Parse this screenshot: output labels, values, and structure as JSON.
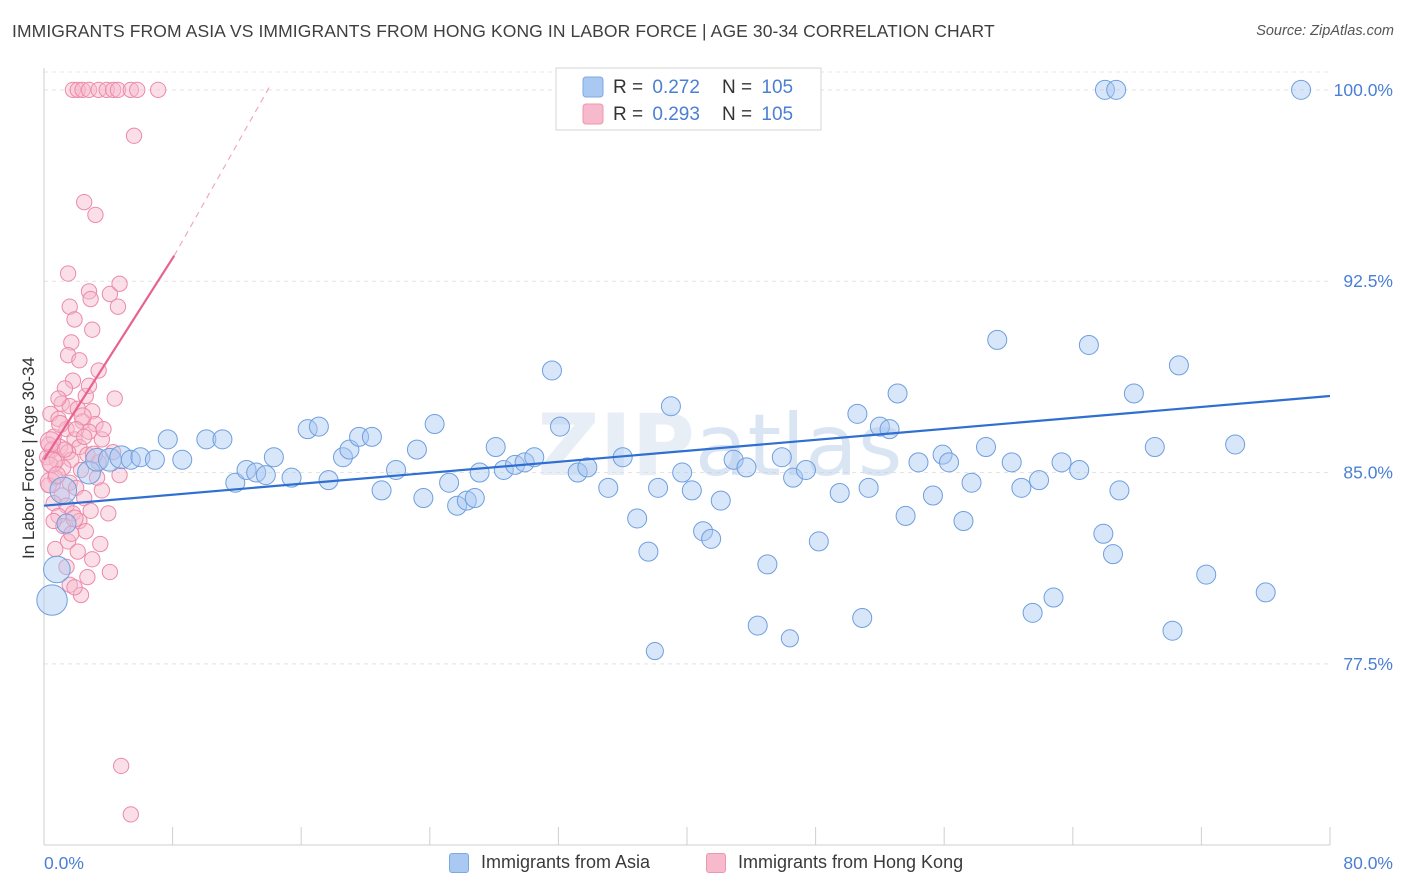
{
  "header": {
    "title": "IMMIGRANTS FROM ASIA VS IMMIGRANTS FROM HONG KONG IN LABOR FORCE | AGE 30-34 CORRELATION CHART",
    "source": "Source: ZipAtlas.com"
  },
  "legend": {
    "asia": {
      "r_label": "R = ",
      "r_value": "0.272",
      "n_label": "N = ",
      "n_value": "105"
    },
    "hk": {
      "r_label": "R = ",
      "r_value": "0.293",
      "n_label": "N = ",
      "n_value": "105"
    }
  },
  "bottom_legend": {
    "asia_label": "Immigrants from Asia",
    "hk_label": "Immigrants from Hong Kong"
  },
  "watermark": "ZIPatlas",
  "colors": {
    "asia_fill": "#a9c8f2",
    "asia_stroke": "#6f9fde",
    "asia_line": "#2f6fd0",
    "hk_fill": "#f7b9cc",
    "hk_stroke": "#ec89a8",
    "hk_line": "#e8628f",
    "axis_value_text": "#4a7fd4",
    "grid": "#e4e4e4"
  },
  "chart_data": {
    "type": "scatter",
    "title": "IMMIGRANTS FROM ASIA VS IMMIGRANTS FROM HONG KONG IN LABOR FORCE | AGE 30-34 CORRELATION CHART",
    "xlabel": "",
    "ylabel": "In Labor Force | Age 30-34",
    "xlim": [
      0,
      80
    ],
    "ylim": [
      70.4,
      100.7
    ],
    "x_tick_labels": [
      "0.0%",
      "80.0%"
    ],
    "y_ticks": [
      77.5,
      85.0,
      92.5,
      100.0
    ],
    "y_tick_labels": [
      "77.5%",
      "85.0%",
      "92.5%",
      "100.0%"
    ],
    "grid": true,
    "legend_position": "top-center",
    "series": [
      {
        "name": "Immigrants from Asia",
        "r": 0.272,
        "n": 105,
        "trend": {
          "x": [
            0,
            80
          ],
          "y": [
            83.7,
            88.0
          ]
        },
        "points": [
          [
            0.5,
            80.0,
            16
          ],
          [
            0.8,
            81.2,
            14
          ],
          [
            1.2,
            84.3,
            14
          ],
          [
            1.4,
            83.0,
            10
          ],
          [
            2.8,
            85.0,
            12
          ],
          [
            3.3,
            85.5,
            12
          ],
          [
            4.1,
            85.5,
            12
          ],
          [
            4.8,
            85.6,
            12
          ],
          [
            5.4,
            85.5,
            10
          ],
          [
            6.0,
            85.6,
            10
          ],
          [
            6.9,
            85.5,
            10
          ],
          [
            7.7,
            86.3,
            10
          ],
          [
            8.6,
            85.5,
            10
          ],
          [
            10.1,
            86.3,
            10
          ],
          [
            11.1,
            86.3,
            10
          ],
          [
            11.9,
            84.6,
            10
          ],
          [
            12.6,
            85.1,
            10
          ],
          [
            13.2,
            85.0,
            10
          ],
          [
            13.8,
            84.9,
            10
          ],
          [
            14.3,
            85.6,
            10
          ],
          [
            15.4,
            84.8,
            10
          ],
          [
            16.4,
            86.7,
            10
          ],
          [
            17.1,
            86.8,
            10
          ],
          [
            17.7,
            84.7,
            10
          ],
          [
            18.6,
            85.6,
            10
          ],
          [
            19.0,
            85.9,
            10
          ],
          [
            19.6,
            86.4,
            10
          ],
          [
            20.4,
            86.4,
            10
          ],
          [
            21.0,
            84.3,
            10
          ],
          [
            21.9,
            85.1,
            10
          ],
          [
            23.2,
            85.9,
            10
          ],
          [
            23.6,
            84.0,
            10
          ],
          [
            24.3,
            86.9,
            10
          ],
          [
            25.2,
            84.6,
            10
          ],
          [
            25.7,
            83.7,
            10
          ],
          [
            26.3,
            83.9,
            10
          ],
          [
            26.8,
            84.0,
            10
          ],
          [
            27.1,
            85.0,
            10
          ],
          [
            28.1,
            86.0,
            10
          ],
          [
            28.6,
            85.1,
            10
          ],
          [
            29.3,
            85.3,
            10
          ],
          [
            29.9,
            85.4,
            10
          ],
          [
            30.5,
            85.6,
            10
          ],
          [
            31.6,
            89.0,
            10
          ],
          [
            32.1,
            86.8,
            10
          ],
          [
            33.2,
            85.0,
            10
          ],
          [
            33.8,
            85.2,
            10
          ],
          [
            35.1,
            84.4,
            10
          ],
          [
            36.0,
            85.6,
            10
          ],
          [
            36.9,
            83.2,
            10
          ],
          [
            37.6,
            81.9,
            10
          ],
          [
            38.2,
            84.4,
            10
          ],
          [
            39.0,
            87.6,
            10
          ],
          [
            39.7,
            85.0,
            10
          ],
          [
            40.3,
            84.3,
            10
          ],
          [
            41.0,
            82.7,
            10
          ],
          [
            41.5,
            82.4,
            10
          ],
          [
            42.1,
            83.9,
            10
          ],
          [
            42.9,
            85.5,
            10
          ],
          [
            43.7,
            85.2,
            10
          ],
          [
            44.4,
            79.0,
            10
          ],
          [
            45.0,
            81.4,
            10
          ],
          [
            45.9,
            85.6,
            10
          ],
          [
            46.6,
            84.8,
            10
          ],
          [
            47.4,
            85.1,
            10
          ],
          [
            48.2,
            82.3,
            10
          ],
          [
            49.5,
            84.2,
            10
          ],
          [
            50.6,
            87.3,
            10
          ],
          [
            50.9,
            79.3,
            10
          ],
          [
            51.3,
            84.4,
            10
          ],
          [
            52.0,
            86.8,
            10
          ],
          [
            52.6,
            86.7,
            10
          ],
          [
            53.1,
            88.1,
            10
          ],
          [
            53.6,
            83.3,
            10
          ],
          [
            54.4,
            85.4,
            10
          ],
          [
            55.3,
            84.1,
            10
          ],
          [
            55.9,
            85.7,
            10
          ],
          [
            56.3,
            85.4,
            10
          ],
          [
            57.2,
            83.1,
            10
          ],
          [
            57.7,
            84.6,
            10
          ],
          [
            58.6,
            86.0,
            10
          ],
          [
            59.3,
            90.2,
            10
          ],
          [
            60.2,
            85.4,
            10
          ],
          [
            60.8,
            84.4,
            10
          ],
          [
            61.5,
            79.5,
            10
          ],
          [
            61.9,
            84.7,
            10
          ],
          [
            62.8,
            80.1,
            10
          ],
          [
            63.3,
            85.4,
            10
          ],
          [
            64.4,
            85.1,
            10
          ],
          [
            65.0,
            90.0,
            10
          ],
          [
            65.9,
            82.6,
            10
          ],
          [
            66.5,
            81.8,
            10
          ],
          [
            66.9,
            84.3,
            10
          ],
          [
            67.8,
            88.1,
            10
          ],
          [
            69.1,
            86.0,
            10
          ],
          [
            70.2,
            78.8,
            10
          ],
          [
            70.6,
            89.2,
            10
          ],
          [
            72.3,
            81.0,
            10
          ],
          [
            74.1,
            86.1,
            10
          ],
          [
            76.0,
            80.3,
            10
          ],
          [
            66.0,
            100.0,
            10
          ],
          [
            66.7,
            100.0,
            10
          ],
          [
            78.2,
            100.0,
            10
          ],
          [
            38.0,
            78.0,
            9
          ],
          [
            46.4,
            78.5,
            9
          ]
        ]
      },
      {
        "name": "Immigrants from Hong Kong",
        "r": 0.293,
        "n": 105,
        "trend": {
          "x": [
            0,
            8.1
          ],
          "y": [
            85.5,
            93.5
          ]
        },
        "trend_extension": {
          "x": [
            8.1,
            14.1
          ],
          "y": [
            93.5,
            100.2
          ]
        },
        "points": [
          [
            1.8,
            100.0,
            9
          ],
          [
            2.1,
            100.0,
            9
          ],
          [
            2.4,
            100.0,
            9
          ],
          [
            2.8,
            100.0,
            9
          ],
          [
            3.4,
            100.0,
            9
          ],
          [
            3.9,
            100.0,
            9
          ],
          [
            4.3,
            100.0,
            9
          ],
          [
            4.6,
            100.0,
            9
          ],
          [
            5.4,
            100.0,
            9
          ],
          [
            5.8,
            100.0,
            9
          ],
          [
            7.1,
            100.0,
            9
          ],
          [
            5.6,
            98.2,
            9
          ],
          [
            2.5,
            95.6,
            9
          ],
          [
            3.2,
            95.1,
            9
          ],
          [
            1.5,
            92.8,
            9
          ],
          [
            2.8,
            92.1,
            9
          ],
          [
            4.1,
            92.0,
            9
          ],
          [
            4.7,
            92.4,
            9
          ],
          [
            2.9,
            91.8,
            9
          ],
          [
            1.6,
            91.5,
            9
          ],
          [
            1.9,
            91.0,
            9
          ],
          [
            4.6,
            91.5,
            9
          ],
          [
            3.0,
            90.6,
            9
          ],
          [
            1.7,
            90.1,
            9
          ],
          [
            1.5,
            89.6,
            9
          ],
          [
            2.2,
            89.4,
            9
          ],
          [
            3.4,
            89.0,
            9
          ],
          [
            1.8,
            88.6,
            9
          ],
          [
            1.3,
            88.3,
            9
          ],
          [
            2.6,
            88.0,
            9
          ],
          [
            4.4,
            87.9,
            9
          ],
          [
            1.1,
            87.7,
            9
          ],
          [
            1.6,
            87.6,
            9
          ],
          [
            2.1,
            87.5,
            9
          ],
          [
            3.0,
            87.4,
            9
          ],
          [
            0.4,
            87.3,
            9
          ],
          [
            0.9,
            87.1,
            9
          ],
          [
            2.4,
            87.0,
            9
          ],
          [
            3.2,
            86.9,
            9
          ],
          [
            1.4,
            86.7,
            9
          ],
          [
            2.8,
            86.6,
            9
          ],
          [
            0.6,
            86.4,
            9
          ],
          [
            1.9,
            86.3,
            9
          ],
          [
            3.6,
            86.3,
            9
          ],
          [
            0.3,
            86.1,
            9
          ],
          [
            1.0,
            86.0,
            9
          ],
          [
            2.2,
            86.0,
            9
          ],
          [
            0.5,
            85.9,
            9
          ],
          [
            1.5,
            85.8,
            9
          ],
          [
            2.7,
            85.7,
            9
          ],
          [
            0.2,
            85.6,
            9
          ],
          [
            0.8,
            85.5,
            9
          ],
          [
            1.7,
            85.5,
            9
          ],
          [
            3.4,
            85.4,
            9
          ],
          [
            0.4,
            85.3,
            9
          ],
          [
            1.2,
            85.2,
            9
          ],
          [
            2.3,
            85.1,
            9
          ],
          [
            4.7,
            84.9,
            9
          ],
          [
            0.7,
            84.8,
            9
          ],
          [
            1.6,
            84.6,
            9
          ],
          [
            0.3,
            84.5,
            9
          ],
          [
            2.0,
            84.4,
            9
          ],
          [
            3.6,
            84.3,
            9
          ],
          [
            1.1,
            84.1,
            9
          ],
          [
            2.5,
            84.0,
            9
          ],
          [
            0.6,
            83.8,
            9
          ],
          [
            1.4,
            83.7,
            9
          ],
          [
            2.9,
            83.5,
            9
          ],
          [
            1.8,
            83.4,
            9
          ],
          [
            4.0,
            83.4,
            9
          ],
          [
            0.9,
            83.3,
            9
          ],
          [
            2.2,
            83.1,
            9
          ],
          [
            1.2,
            82.9,
            9
          ],
          [
            2.6,
            82.7,
            9
          ],
          [
            1.5,
            82.3,
            9
          ],
          [
            3.5,
            82.2,
            9
          ],
          [
            0.7,
            82.0,
            9
          ],
          [
            2.1,
            81.9,
            9
          ],
          [
            3.0,
            81.6,
            9
          ],
          [
            1.4,
            81.3,
            9
          ],
          [
            4.1,
            81.1,
            9
          ],
          [
            2.7,
            80.9,
            9
          ],
          [
            1.6,
            80.6,
            9
          ],
          [
            2.3,
            80.2,
            9
          ],
          [
            1.9,
            80.5,
            9
          ],
          [
            4.8,
            73.5,
            9
          ],
          [
            5.4,
            71.6,
            9
          ],
          [
            0.4,
            86.2,
            12
          ],
          [
            0.5,
            85.4,
            12
          ],
          [
            0.4,
            84.6,
            12
          ],
          [
            1.0,
            86.9,
            10
          ],
          [
            2.4,
            87.2,
            10
          ],
          [
            0.8,
            84.9,
            10
          ],
          [
            3.1,
            85.7,
            10
          ],
          [
            1.9,
            83.2,
            10
          ],
          [
            3.7,
            86.7,
            9
          ],
          [
            0.6,
            83.1,
            9
          ],
          [
            2.8,
            88.4,
            9
          ],
          [
            1.3,
            85.9,
            9
          ],
          [
            2.0,
            86.7,
            9
          ],
          [
            3.3,
            84.8,
            9
          ],
          [
            4.3,
            85.8,
            9
          ],
          [
            0.9,
            87.9,
            9
          ],
          [
            1.7,
            82.6,
            9
          ],
          [
            2.5,
            86.4,
            9
          ]
        ]
      }
    ]
  }
}
